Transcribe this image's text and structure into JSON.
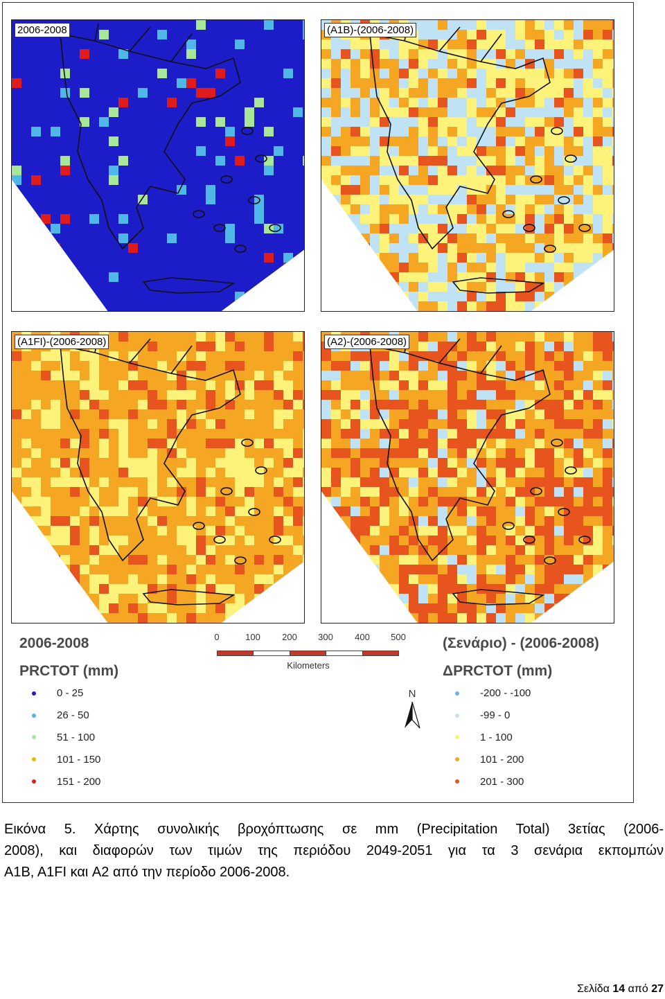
{
  "panels": [
    {
      "label": "2006-2008",
      "palette": "base"
    },
    {
      "label": "(A1B)-(2006-2008)",
      "palette": "a1b"
    },
    {
      "label": "(A1FI)-(2006-2008)",
      "palette": "a1fi"
    },
    {
      "label": "(A2)-(2006-2008)",
      "palette": "a2"
    }
  ],
  "legend_left": {
    "title": "2006-2008",
    "subtitle": "PRCTOT (mm)",
    "items": [
      {
        "label": "0 - 25",
        "color": "#1c1cc8"
      },
      {
        "label": "26 - 50",
        "color": "#4fb8e8"
      },
      {
        "label": "51 - 100",
        "color": "#a8e69a"
      },
      {
        "label": "101 - 150",
        "color": "#f2b200"
      },
      {
        "label": "151 - 200",
        "color": "#e01b1b"
      }
    ]
  },
  "legend_right": {
    "title": "(Σενάριο) - (2006-2008)",
    "subtitle": "ΔPRCTOT (mm)",
    "items": [
      {
        "label": "-200 - -100",
        "color": "#6cb4e4"
      },
      {
        "label": "-99 - 0",
        "color": "#bfe3f5"
      },
      {
        "label": "1 - 100",
        "color": "#fdf27a"
      },
      {
        "label": "101 - 200",
        "color": "#f5a623"
      },
      {
        "label": "201 - 300",
        "color": "#e8541e"
      }
    ]
  },
  "scale": {
    "ticks": [
      "0",
      "100",
      "200",
      "300",
      "400",
      "500"
    ],
    "unit": "Kilometers",
    "seg_colors": [
      "#c0392b",
      "#ffffff",
      "#c0392b",
      "#ffffff",
      "#c0392b"
    ]
  },
  "north": {
    "letter": "N"
  },
  "caption": {
    "line1": "Εικόνα 5. Χάρτης συνολικής βροχόπτωσης σε mm (Precipitation Total) 3ετίας (2006-",
    "line2": "2008), και διαφορών των τιμών της περιόδου 2049-2051 για τα 3 σενάρια εκπομπών",
    "line3": "A1B, A1FI και A2 από την περίοδο 2006-2008."
  },
  "footer": {
    "prefix": "Σελίδα ",
    "page": "14",
    "middle": " από ",
    "total": "27"
  }
}
